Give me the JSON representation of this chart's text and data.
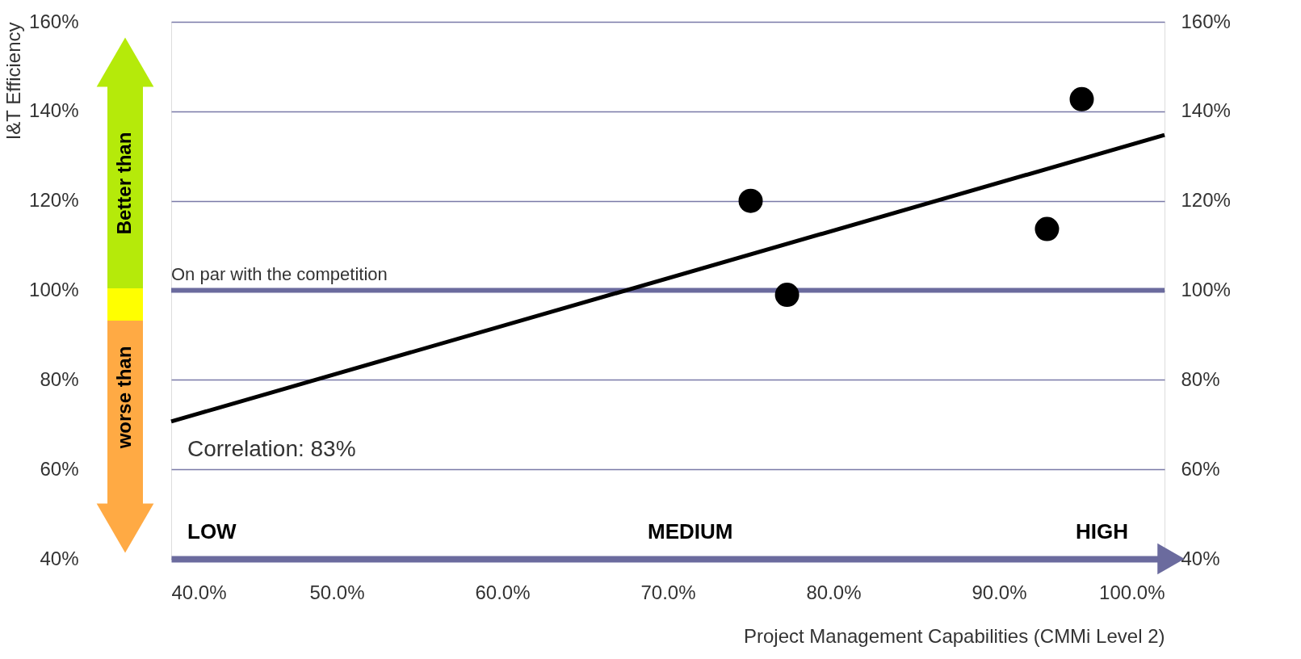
{
  "chart_data": {
    "type": "scatter",
    "ylabel": "I&T Efficiency",
    "xlabel": "Project Management Capabilities (CMMi Level 2)",
    "xlim": [
      40,
      100
    ],
    "xticks": [
      {
        "value": 40,
        "label": "40.0%"
      },
      {
        "value": 50,
        "label": "50.0%"
      },
      {
        "value": 60,
        "label": "60.0%"
      },
      {
        "value": 70,
        "label": "70.0%"
      },
      {
        "value": 80,
        "label": "80.0%"
      },
      {
        "value": 90,
        "label": "90.0%"
      },
      {
        "value": 100,
        "label": "100.0%"
      }
    ],
    "ylim": [
      40,
      160
    ],
    "yticks": [
      {
        "value": 40,
        "label": "40%"
      },
      {
        "value": 60,
        "label": "60%"
      },
      {
        "value": 80,
        "label": "80%"
      },
      {
        "value": 100,
        "label": "100%"
      },
      {
        "value": 120,
        "label": "120%"
      },
      {
        "value": 140,
        "label": "140%"
      },
      {
        "value": 160,
        "label": "160%"
      }
    ],
    "y2lim": [
      40,
      160
    ],
    "y2ticks": [
      {
        "value": 40,
        "label": "40%"
      },
      {
        "value": 60,
        "label": "60%"
      },
      {
        "value": 80,
        "label": "80%"
      },
      {
        "value": 100,
        "label": "100%"
      },
      {
        "value": 120,
        "label": "120%"
      },
      {
        "value": 140,
        "label": "140%"
      },
      {
        "value": 160,
        "label": "160%"
      }
    ],
    "grid": "y",
    "series": [
      {
        "color": "#000000",
        "marker": "circle",
        "x": [
          75.0,
          77.2,
          92.9,
          95.0
        ],
        "values": [
          120,
          99,
          113.7,
          142.7
        ]
      },
      {
        "type": "line",
        "color": "#000000",
        "x": [
          40,
          100
        ],
        "values": [
          70.7,
          134.7
        ],
        "line_style": "solid"
      }
    ],
    "ref_lines": [
      {
        "axis": "y",
        "value": 100,
        "label": "On par with the competition",
        "color": "#6b6b9e"
      }
    ],
    "annotations": [
      "Correlation: 83%",
      "LOW",
      "MEDIUM",
      "HIGH",
      "Better than",
      "worse than"
    ]
  }
}
